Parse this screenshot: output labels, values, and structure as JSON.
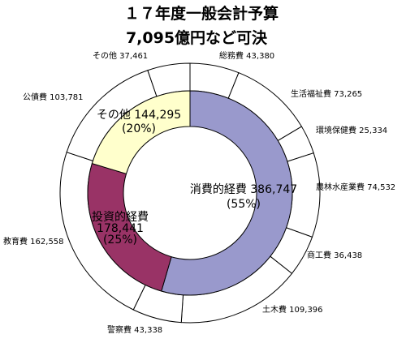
{
  "chart_data": {
    "type": "pie",
    "title_line1": "１７年度一般会計予算",
    "title_line2": "7,095億円など可決",
    "outer_ring": [
      {
        "name": "総務費",
        "value": "43,380"
      },
      {
        "name": "生活福祉費",
        "value": "73,265"
      },
      {
        "name": "環境保健費",
        "value": "25,334"
      },
      {
        "name": "農林水産業費",
        "value": "74,532"
      },
      {
        "name": "商工費",
        "value": "36,438"
      },
      {
        "name": "土木費",
        "value": "109,396"
      },
      {
        "name": "警察費",
        "value": "43,338"
      },
      {
        "name": "教育費",
        "value": "162,558"
      },
      {
        "name": "公債費",
        "value": "103,781"
      },
      {
        "name": "その他",
        "value": "37,461"
      }
    ],
    "inner_ring": [
      {
        "name": "消費的経費",
        "value": "386,747",
        "percent": "(55%)",
        "color": "#9999cc"
      },
      {
        "name": "投資的経費",
        "value": "178,441",
        "percent": "(25%)",
        "color": "#993366"
      },
      {
        "name": "その他",
        "value": "144,295",
        "percent": "(20%)",
        "color": "#ffffcc"
      }
    ],
    "outer_ring_color": "#ffffff",
    "stroke_color": "#000000"
  }
}
